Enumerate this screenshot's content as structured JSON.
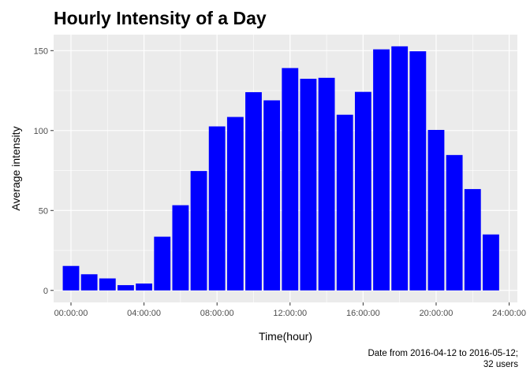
{
  "chart_data": {
    "type": "bar",
    "title": "Hourly Intensity of a Day",
    "xlabel": "Time(hour)",
    "ylabel": "Average intensity",
    "caption_lines": [
      "Date from 2016-04-12 to 2016-05-12;",
      "32 users"
    ],
    "x_ticks": [
      "00:00:00",
      "04:00:00",
      "08:00:00",
      "12:00:00",
      "16:00:00",
      "20:00:00",
      "24:00:00"
    ],
    "x_tick_hours": [
      0,
      4,
      8,
      12,
      16,
      20,
      24
    ],
    "x_range_hours": [
      -0.95,
      24.45
    ],
    "y_ticks": [
      0,
      50,
      100,
      150
    ],
    "ylim": [
      -7.5,
      160
    ],
    "hours": [
      0,
      1,
      2,
      3,
      4,
      5,
      6,
      7,
      8,
      9,
      10,
      11,
      12,
      13,
      14,
      15,
      16,
      17,
      18,
      19,
      20,
      21,
      22,
      23
    ],
    "values": [
      15.3,
      10.1,
      7.5,
      3.3,
      4.3,
      33.6,
      53.3,
      74.7,
      102.6,
      108.5,
      124.0,
      118.9,
      139.1,
      132.4,
      133.0,
      109.9,
      124.2,
      150.8,
      152.7,
      149.6,
      100.4,
      84.7,
      63.4,
      35.0
    ],
    "bar_color": "#0000ff",
    "panel_color": "#ebebeb",
    "grid": true
  }
}
